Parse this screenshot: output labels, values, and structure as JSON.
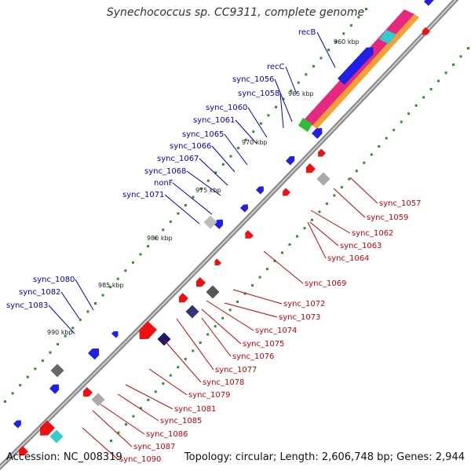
{
  "header": {
    "title": "Synechococcus sp. CC9311, complete genome"
  },
  "footer": {
    "accession": "Accession: NC_008319",
    "topology": "Topology: circular; Length: 2,606,748 bp; Genes: 2,944"
  },
  "ticks": [
    "960 kbp",
    "965 kbp",
    "970 kbp",
    "975 kbp",
    "980 kbp",
    "985 kbp",
    "990 kbp"
  ],
  "labels_forward": [
    "recB",
    "recC",
    "sync_1056",
    "sync_1058",
    "sync_1060",
    "sync_1061",
    "sync_1065",
    "sync_1066",
    "sync_1067",
    "sync_1068",
    "nonF",
    "sync_1071",
    "sync_1080",
    "sync_1082",
    "sync_1083"
  ],
  "labels_reverse": [
    "sync_1057",
    "sync_1059",
    "sync_1062",
    "sync_1063",
    "sync_1064",
    "sync_1069",
    "sync_1072",
    "sync_1073",
    "sync_1074",
    "sync_1075",
    "sync_1076",
    "sync_1077",
    "sync_1078",
    "sync_1079",
    "sync_1081",
    "sync_1085",
    "sync_1086",
    "sync_1087",
    "sync_1090"
  ],
  "colors": {
    "forward_gene": "#1f1fe6",
    "reverse_gene": "#ee1111",
    "backbone": "#888888",
    "gc_skew": "#2f8f2f",
    "label_forward": "#0000cc",
    "label_reverse": "#cc0000",
    "rrna_magenta": "#e8277e",
    "rrna_cyan": "#33cccc",
    "rrna_green": "#33bb33",
    "rrna_orange": "#f5a030"
  }
}
